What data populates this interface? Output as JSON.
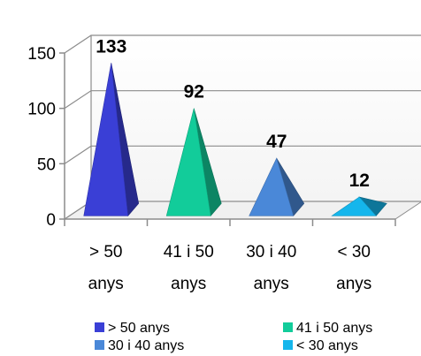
{
  "chart_data": {
    "type": "bar",
    "style": "3d-pyramid",
    "categories": [
      {
        "line1": "> 50",
        "line2": "anys"
      },
      {
        "line1": "41 i 50",
        "line2": "anys"
      },
      {
        "line1": "30 i 40",
        "line2": "anys"
      },
      {
        "line1": "< 30",
        "line2": "anys"
      }
    ],
    "values": [
      133,
      92,
      47,
      12
    ],
    "value_labels": [
      "133",
      "92",
      "47",
      "12"
    ],
    "colors": [
      "#3a3fd6",
      "#12cc9a",
      "#4a88d8",
      "#15b6ec"
    ],
    "ylim": [
      0,
      150
    ],
    "yticks": [
      "0",
      "50",
      "100",
      "150"
    ],
    "ytick_values": [
      0,
      50,
      100,
      150
    ],
    "grid": true,
    "legend_position": "bottom",
    "legend": [
      "> 50 anys",
      "41 i 50 anys",
      "30 i 40 anys",
      "< 30 anys"
    ]
  }
}
